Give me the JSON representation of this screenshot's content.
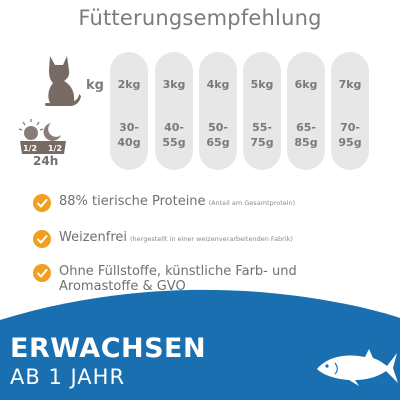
{
  "title": "Fütterungsempfehlung",
  "row_labels": {
    "kg": "kg",
    "day": "24h",
    "half_left": "1/2",
    "half_right": "1/2"
  },
  "columns": [
    {
      "weight": "2kg",
      "portion_top": "30-",
      "portion_bottom": "40g"
    },
    {
      "weight": "3kg",
      "portion_top": "40-",
      "portion_bottom": "55g"
    },
    {
      "weight": "4kg",
      "portion_top": "50-",
      "portion_bottom": "65g"
    },
    {
      "weight": "5kg",
      "portion_top": "55-",
      "portion_bottom": "75g"
    },
    {
      "weight": "6kg",
      "portion_top": "65-",
      "portion_bottom": "85g"
    },
    {
      "weight": "7kg",
      "portion_top": "70-",
      "portion_bottom": "95g"
    }
  ],
  "features": [
    {
      "text": "88% tierische Proteine",
      "note": "(Anteil am Gesamtprotein)"
    },
    {
      "text": "Weizenfrei",
      "note": "(hergestellt in einer weizenverarbeitenden Fabrik)"
    },
    {
      "text": "Ohne Füllstoffe, künstliche Farb- und Aromastoffe & GVO",
      "note": ""
    }
  ],
  "banner": {
    "line1": "ERWACHSEN",
    "line2": "AB 1 JAHR"
  },
  "colors": {
    "accent_orange": "#f0a021",
    "banner_blue": "#1a6fb0",
    "column_gray": "#e7e7e7",
    "icon_brown": "#7a6a64"
  },
  "icons": {
    "cat": "cat-icon",
    "day_night": "sun-moon-icon",
    "fish": "tuna-fish-icon",
    "check": "check-icon"
  }
}
